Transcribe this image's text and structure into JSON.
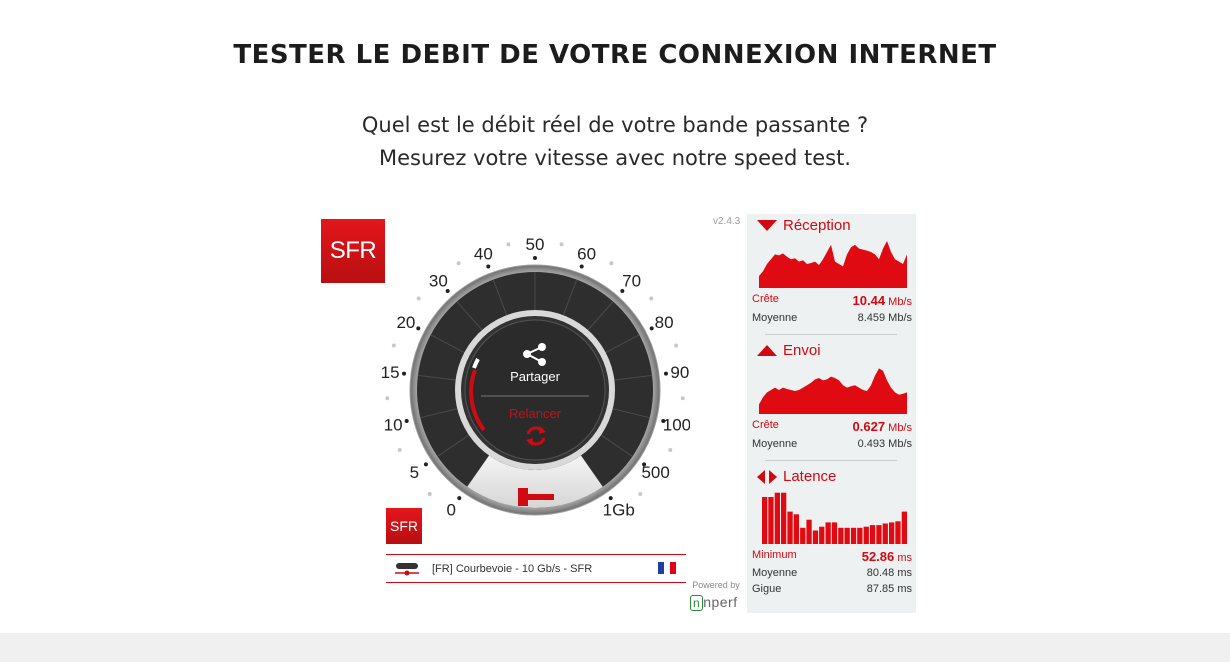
{
  "page": {
    "title": "TESTER LE DEBIT DE VOTRE CONNEXION INTERNET",
    "subtitle_line1": "Quel est le débit réel de votre bande passante ?",
    "subtitle_line2": "Mesurez votre vitesse avec notre speed test."
  },
  "widget": {
    "logo_text": "SFR",
    "version": "v2.4.3",
    "gauge_labels": [
      "0",
      "5",
      "10",
      "15",
      "20",
      "30",
      "40",
      "50",
      "60",
      "70",
      "80",
      "90",
      "100",
      "500",
      "1Gb"
    ],
    "share_label": "Partager",
    "restart_label": "Relancer",
    "server_text": "[FR] Courbevoie - 10 Gb/s - SFR",
    "powered_by": "Powered by",
    "nperf_brand": "nperf"
  },
  "results": {
    "reception": {
      "title": "Réception",
      "peak_label": "Crête",
      "peak_value": "10.44",
      "peak_unit": "Mb/s",
      "avg_label": "Moyenne",
      "avg_value": "8.459 Mb/s",
      "graph": [
        0.25,
        0.35,
        0.5,
        0.6,
        0.7,
        0.68,
        0.72,
        0.65,
        0.6,
        0.62,
        0.55,
        0.58,
        0.5,
        0.52,
        0.55,
        0.48,
        0.6,
        0.75,
        0.9,
        0.55,
        0.5,
        0.45,
        0.7,
        0.85,
        0.9,
        0.82,
        0.8,
        0.78,
        0.75,
        0.7,
        0.6,
        0.82,
        0.98,
        0.75,
        0.6,
        0.55,
        0.5,
        0.7
      ]
    },
    "envoi": {
      "title": "Envoi",
      "peak_label": "Crête",
      "peak_value": "0.627",
      "peak_unit": "Mb/s",
      "avg_label": "Moyenne",
      "avg_value": "0.493 Mb/s",
      "graph": [
        0.2,
        0.35,
        0.45,
        0.5,
        0.55,
        0.5,
        0.55,
        0.52,
        0.5,
        0.48,
        0.5,
        0.55,
        0.6,
        0.65,
        0.72,
        0.75,
        0.7,
        0.72,
        0.78,
        0.75,
        0.7,
        0.6,
        0.55,
        0.58,
        0.6,
        0.55,
        0.5,
        0.48,
        0.6,
        0.8,
        0.95,
        0.9,
        0.7,
        0.55,
        0.45,
        0.4,
        0.42,
        0.45
      ]
    },
    "latence": {
      "title": "Latence",
      "min_label": "Minimum",
      "min_value": "52.86",
      "min_unit": "ms",
      "avg_label": "Moyenne",
      "avg_value": "80.48 ms",
      "jitter_label": "Gigue",
      "jitter_value": "87.85 ms",
      "bars": [
        0.87,
        0.87,
        0.95,
        0.95,
        0.6,
        0.55,
        0.3,
        0.45,
        0.25,
        0.32,
        0.4,
        0.4,
        0.3,
        0.3,
        0.3,
        0.3,
        0.32,
        0.35,
        0.35,
        0.38,
        0.4,
        0.42,
        0.6
      ]
    }
  },
  "colors": {
    "brand_red": "#d10a11",
    "dial_dark": "#2b2b2b",
    "panel_bg": "#eef1f1"
  }
}
